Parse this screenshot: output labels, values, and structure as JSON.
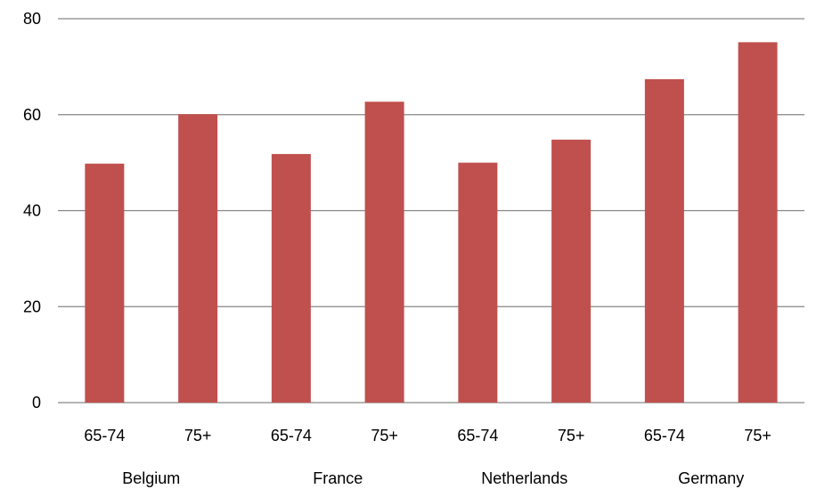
{
  "chart_data": {
    "type": "bar",
    "title": "",
    "xlabel": "",
    "ylabel": "",
    "ylim": [
      0,
      80
    ],
    "yticks": [
      0,
      20,
      40,
      60,
      80
    ],
    "grid": true,
    "legend": "none",
    "bar_color": "#C0504D",
    "groups": [
      "Belgium",
      "France",
      "Netherlands",
      "Germany"
    ],
    "categories": [
      "65-74",
      "75+",
      "65-74",
      "75+",
      "65-74",
      "75+",
      "65-74",
      "75+"
    ],
    "values": [
      49.8,
      60.1,
      51.8,
      62.7,
      50.0,
      54.8,
      67.4,
      75.1
    ]
  }
}
